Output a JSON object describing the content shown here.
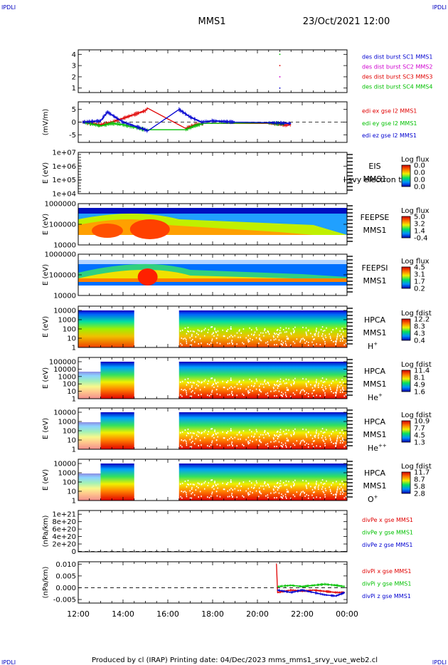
{
  "header": {
    "corner_tl": "IPDLI",
    "corner_tr": "IPDLI",
    "title": "MMS1",
    "date": "23/Oct/2021 12:00"
  },
  "footer": {
    "text": "Produced by cl (IRAP)   Printing date: 04/Dec/2023   mms_mms1_srvy_vue_web2.cl",
    "corner_bl": "IPDLI",
    "corner_br": "IPDLI"
  },
  "time_axis": {
    "tick_labels": [
      "12:00",
      "14:00",
      "16:00",
      "18:00",
      "20:00",
      "22:00",
      "00:00"
    ],
    "range_hours": [
      12,
      24
    ]
  },
  "colors": {
    "red": "#e00000",
    "green": "#00c000",
    "blue": "#0000d0",
    "magenta": "#d000d0"
  },
  "chart_data": [
    {
      "type": "scatter",
      "panel": "burst",
      "yticks": [
        "1",
        "2",
        "3",
        "4"
      ],
      "ylim": [
        0.6,
        4.4
      ],
      "ylabel": "",
      "legend": [
        {
          "text": "des dist burst SC1 MMS1",
          "color": "#0000d0"
        },
        {
          "text": "des dist burst SC2 MMS2",
          "color": "#d000d0"
        },
        {
          "text": "des dist burst SC3 MMS3",
          "color": "#e00000"
        },
        {
          "text": "des dist burst SC4 MMS4",
          "color": "#00c000"
        }
      ],
      "series": [
        {
          "name": "des dist burst SC1 MMS1",
          "x": [
            21.0
          ],
          "y": [
            1
          ]
        },
        {
          "name": "des dist burst SC2 MMS2",
          "x": [
            21.0
          ],
          "y": [
            2
          ]
        },
        {
          "name": "des dist burst SC3 MMS3",
          "x": [
            21.0
          ],
          "y": [
            3
          ]
        },
        {
          "name": "des dist burst SC4 MMS4",
          "x": [
            21.0
          ],
          "y": [
            4
          ]
        }
      ]
    },
    {
      "type": "line",
      "panel": "edi",
      "ylabel": "(mV/m)",
      "yticks": [
        "-5",
        "0",
        "5"
      ],
      "ylim": [
        -8,
        8
      ],
      "legend": [
        {
          "text": "edi ex gse l2 MMS1",
          "color": "#e00000"
        },
        {
          "text": "edi ey gse l2 MMS1",
          "color": "#00c000"
        },
        {
          "text": "edi ez gse l2 MMS1",
          "color": "#0000d0"
        }
      ],
      "series": [
        {
          "name": "edi ex gse l2 MMS1",
          "x": [
            12.2,
            13.0,
            13.5,
            14.0,
            14.5,
            15.0,
            15.1,
            16.8,
            17.2,
            17.6,
            20.5,
            21.2,
            21.5
          ],
          "y": [
            0,
            -1,
            0,
            1.5,
            3,
            4.5,
            5.5,
            -2.5,
            -1,
            -0.5,
            -0.5,
            -1.2,
            -1
          ]
        },
        {
          "name": "edi ey gse l2 MMS1",
          "x": [
            12.2,
            13.0,
            13.5,
            14.0,
            14.5,
            15.0,
            16.8,
            17.2,
            17.6,
            20.5,
            21.2
          ],
          "y": [
            0,
            -1.5,
            -0.5,
            -1,
            -2,
            -3,
            -3,
            -1.5,
            -0.5,
            -0.3,
            -0.8
          ]
        },
        {
          "name": "edi ez gse l2 MMS1",
          "x": [
            12.2,
            13.0,
            13.3,
            14.0,
            14.5,
            15.0,
            15.1,
            16.5,
            17.0,
            17.5,
            18.0,
            19.0,
            20.5,
            21.5
          ],
          "y": [
            0,
            0.5,
            4,
            0,
            -1.5,
            -3,
            -3.5,
            5,
            2,
            0,
            0.5,
            0,
            -0.2,
            -0.5
          ]
        }
      ]
    },
    {
      "type": "heatmap",
      "panel": "eis",
      "ylabel": "E (eV)",
      "yticks": [
        "1e+04",
        "1e+05",
        "1e+06",
        "1e+07"
      ],
      "labels": [
        "EIS",
        "MMS1"
      ],
      "overlay_text": "l svy electron to",
      "colorbar": {
        "title": "Log flux",
        "ticks": [
          "0.0",
          "0.0",
          "0.0",
          "0.0"
        ]
      }
    },
    {
      "type": "heatmap",
      "panel": "feepse",
      "ylabel": "E (eV)",
      "yticks": [
        "10000",
        "100000",
        "1000000"
      ],
      "labels": [
        "FEEPSE",
        "MMS1"
      ],
      "colorbar": {
        "title": "Log flux",
        "ticks": [
          "5.0",
          "3.2",
          "1.4",
          "-0.4"
        ]
      }
    },
    {
      "type": "heatmap",
      "panel": "feepsi",
      "ylabel": "E (eV)",
      "yticks": [
        "10000",
        "100000",
        "1000000"
      ],
      "labels": [
        "FEEPSI",
        "MMS1"
      ],
      "colorbar": {
        "title": "Log flux",
        "ticks": [
          "4.5",
          "3.1",
          "1.7",
          "0.2"
        ]
      }
    },
    {
      "type": "heatmap",
      "panel": "hpca_h",
      "ylabel": "E (eV)",
      "yticks": [
        "1",
        "10",
        "100",
        "1000",
        "10000"
      ],
      "labels": [
        "HPCA",
        "MMS1"
      ],
      "species": "H",
      "species_sup": "+",
      "colorbar": {
        "title": "Log fdist",
        "ticks": [
          "12.2",
          "8.3",
          "4.3",
          "0.4"
        ]
      }
    },
    {
      "type": "heatmap",
      "panel": "hpca_he",
      "ylabel": "E (eV)",
      "yticks": [
        "1",
        "10",
        "100",
        "1000",
        "10000",
        "100000"
      ],
      "labels": [
        "HPCA",
        "MMS1"
      ],
      "species": "He",
      "species_sup": "+",
      "colorbar": {
        "title": "Log fdist",
        "ticks": [
          "11.4",
          "8.1",
          "4.9",
          "1.6"
        ]
      }
    },
    {
      "type": "heatmap",
      "panel": "hpca_he2",
      "ylabel": "E (eV)",
      "yticks": [
        "1",
        "10",
        "100",
        "1000",
        "10000"
      ],
      "labels": [
        "HPCA",
        "MMS1"
      ],
      "species": "He",
      "species_sup": "++",
      "colorbar": {
        "title": "Log fdist",
        "ticks": [
          "10.9",
          "7.7",
          "4.5",
          "1.3"
        ]
      }
    },
    {
      "type": "heatmap",
      "panel": "hpca_o",
      "ylabel": "E (eV)",
      "yticks": [
        "1",
        "10",
        "100",
        "1000",
        "10000"
      ],
      "labels": [
        "HPCA",
        "MMS1"
      ],
      "species": "O",
      "species_sup": "+",
      "colorbar": {
        "title": "Log fdist",
        "ticks": [
          "11.7",
          "8.7",
          "5.8",
          "2.8"
        ]
      }
    },
    {
      "type": "line",
      "panel": "divpe",
      "ylabel": "(nPa/km)",
      "yticks": [
        "0",
        "2e+20",
        "4e+20",
        "6e+20",
        "8e+20",
        "1e+21"
      ],
      "ylim": [
        -1e+19,
        1.1e+21
      ],
      "legend": [
        {
          "text": "divPe x gse MMS1",
          "color": "#e00000"
        },
        {
          "text": "divPe y gse MMS1",
          "color": "#00c000"
        },
        {
          "text": "divPe z gse MMS1",
          "color": "#0000d0"
        }
      ]
    },
    {
      "type": "line",
      "panel": "divpi",
      "ylabel": "(nPa/km)",
      "yticks": [
        "-0.005",
        "0.000",
        "0.005",
        "0.010"
      ],
      "ylim": [
        -0.0065,
        0.011
      ],
      "legend": [
        {
          "text": "divPi x gse MMS1",
          "color": "#e00000"
        },
        {
          "text": "divPi y gse MMS1",
          "color": "#00c000"
        },
        {
          "text": "divPi z gse MMS1",
          "color": "#0000d0"
        }
      ],
      "series": [
        {
          "name": "divPi x gse MMS1",
          "x": [
            20.85,
            20.9,
            21.5,
            22.0,
            22.5,
            23.0,
            23.5,
            23.9
          ],
          "y": [
            0.01,
            -0.002,
            -0.001,
            -0.0015,
            -0.001,
            -0.0015,
            -0.002,
            -0.002
          ]
        },
        {
          "name": "divPi y gse MMS1",
          "x": [
            20.9,
            21.5,
            22.0,
            22.5,
            23.0,
            23.5,
            23.9
          ],
          "y": [
            0.0005,
            0.001,
            0.0005,
            0.001,
            0.0015,
            0.001,
            0.0005
          ]
        },
        {
          "name": "divPi z gse MMS1",
          "x": [
            20.9,
            21.5,
            22.0,
            22.5,
            23.0,
            23.5,
            23.9
          ],
          "y": [
            -0.001,
            -0.002,
            -0.001,
            -0.002,
            -0.003,
            -0.0035,
            -0.002
          ]
        }
      ]
    }
  ]
}
